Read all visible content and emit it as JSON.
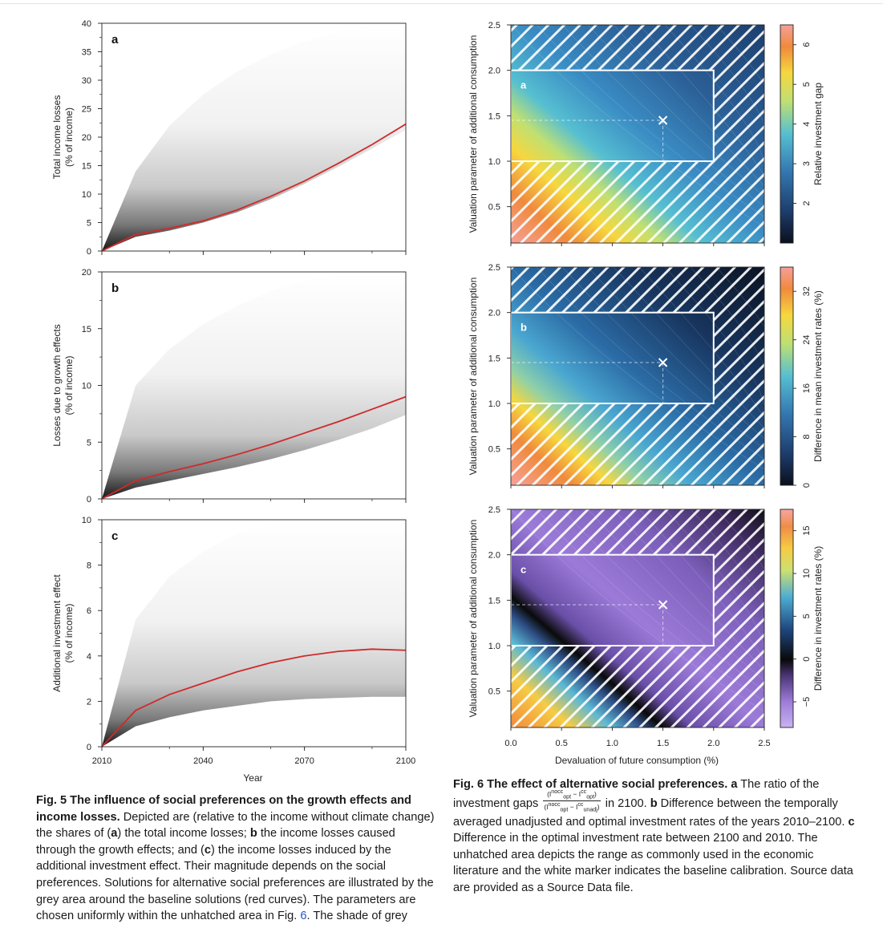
{
  "fig5": {
    "xlabel": "Year",
    "xticks": [
      "2010",
      "2040",
      "2070",
      "2100"
    ],
    "panels": [
      {
        "letter": "a",
        "ylabel1": "Total income losses",
        "ylabel2": "(% of income)",
        "yticks": [
          "0",
          "5",
          "10",
          "15",
          "20",
          "25",
          "30",
          "35",
          "40"
        ]
      },
      {
        "letter": "b",
        "ylabel1": "Losses due to growth effects",
        "ylabel2": "(% of income)",
        "yticks": [
          "0",
          "5",
          "10",
          "15",
          "20"
        ]
      },
      {
        "letter": "c",
        "ylabel1": "Additional investment effect",
        "ylabel2": "(% of income)",
        "yticks": [
          "0",
          "2",
          "4",
          "6",
          "8",
          "10"
        ]
      }
    ],
    "caption": {
      "label": "Fig. 5",
      "title": "The influence of social preferences on the growth effects and income losses.",
      "t1": " Depicted are (relative to the income without climate change) the shares of (",
      "a": "a",
      "t2": ") the total income losses; ",
      "b": "b",
      "t3": " the income losses caused through the growth effects; and (",
      "c": "c",
      "t4": ") the income losses induced by the additional investment effect. Their magnitude depends on the social preferences. Solutions for alternative social preferences are illustrated by the grey area around the baseline solutions (red curves). The parameters are chosen uniformly within the unhatched area in Fig. ",
      "ref": "6",
      "t5": ". The shade of grey"
    }
  },
  "fig6": {
    "xlabel": "Devaluation of future consumption (%)",
    "ylabel": "Valuation parameter of additional consumption",
    "xticks": [
      "0.0",
      "0.5",
      "1.0",
      "1.5",
      "2.0",
      "2.5"
    ],
    "yticks": [
      "0.5",
      "1.0",
      "1.5",
      "2.0",
      "2.5"
    ],
    "panels": [
      {
        "letter": "a",
        "cbar_label": "Relative investment gap",
        "cbar_ticks": [
          "2",
          "3",
          "4",
          "5",
          "6"
        ]
      },
      {
        "letter": "b",
        "cbar_label": "Difference in mean investment rates (%)",
        "cbar_ticks": [
          "0",
          "8",
          "16",
          "24",
          "32"
        ]
      },
      {
        "letter": "c",
        "cbar_label": "Difference in investment rates (%)",
        "cbar_ticks": [
          "−5",
          "0",
          "5",
          "10",
          "15"
        ]
      }
    ],
    "caption": {
      "label": "Fig. 6",
      "title": "The effect of alternative social preferences.",
      "a": "a",
      "t1": " The ratio of the investment gaps ",
      "frac_num": "(I",
      "frac_num_sup1": "nocc",
      "frac_num_sub1": "opt",
      "frac_num_mid": " − I",
      "frac_num_sup2": "cc",
      "frac_num_sub2": "opt",
      "frac_num_end": ")",
      "frac_den": "(I",
      "frac_den_sup1": "nocc",
      "frac_den_sub1": "opt",
      "frac_den_mid": " − I",
      "frac_den_sup2": "cc",
      "frac_den_sub2": "unadj",
      "frac_den_end": ")",
      "t2": " in 2100. ",
      "b": "b",
      "t3": " Difference between the temporally averaged unadjusted and optimal investment rates of the years 2010–2100. ",
      "c": "c",
      "t4": " Difference in the optimal investment rate between 2100 and 2010. The unhatched area depicts the range as commonly used in the economic literature and the white marker indicates the baseline calibration. Source data are provided as a Source Data file."
    }
  },
  "chart_data": [
    {
      "type": "area",
      "title": "a",
      "xlabel": "",
      "ylabel": "Total income losses (% of income)",
      "xlim": [
        2010,
        2100
      ],
      "ylim": [
        0,
        40
      ],
      "series": [
        {
          "x": [
            2010,
            2020,
            2030,
            2040,
            2050,
            2060,
            2070,
            2080,
            2090,
            2100
          ],
          "values": [
            0,
            2.9,
            4.0,
            5.3,
            7.2,
            9.6,
            12.3,
            15.4,
            18.7,
            22.3
          ]
        }
      ],
      "band_upper": [
        0,
        14,
        22,
        27.5,
        31.5,
        34.5,
        36.8,
        38.5,
        39.5,
        40
      ],
      "band_lower": [
        0,
        2.5,
        3.6,
        5.0,
        6.8,
        9.1,
        11.8,
        14.8,
        18.0,
        21.3
      ]
    },
    {
      "type": "area",
      "title": "b",
      "xlabel": "",
      "ylabel": "Losses due to growth effects (% of income)",
      "xlim": [
        2010,
        2100
      ],
      "ylim": [
        0,
        20
      ],
      "series": [
        {
          "x": [
            2010,
            2020,
            2030,
            2040,
            2050,
            2060,
            2070,
            2080,
            2090,
            2100
          ],
          "values": [
            0,
            1.6,
            2.4,
            3.1,
            3.9,
            4.8,
            5.8,
            6.8,
            7.9,
            9.0
          ]
        }
      ],
      "band_upper": [
        0,
        10,
        13.2,
        15.4,
        17.0,
        18.3,
        19.2,
        19.8,
        20,
        20
      ],
      "band_lower": [
        0,
        1.0,
        1.6,
        2.2,
        2.8,
        3.5,
        4.3,
        5.2,
        6.2,
        7.4
      ]
    },
    {
      "type": "area",
      "title": "c",
      "xlabel": "Year",
      "ylabel": "Additional investment effect (% of income)",
      "xlim": [
        2010,
        2100
      ],
      "ylim": [
        0,
        10
      ],
      "series": [
        {
          "x": [
            2010,
            2020,
            2030,
            2040,
            2050,
            2060,
            2070,
            2080,
            2090,
            2100
          ],
          "values": [
            0,
            1.6,
            2.3,
            2.8,
            3.3,
            3.7,
            4.0,
            4.2,
            4.3,
            4.25
          ]
        }
      ],
      "band_upper": [
        0,
        5.6,
        7.5,
        8.6,
        9.4,
        9.8,
        10,
        10,
        10,
        10
      ],
      "band_lower": [
        0,
        0.9,
        1.3,
        1.6,
        1.8,
        2.0,
        2.1,
        2.15,
        2.2,
        2.2
      ]
    },
    {
      "type": "heatmap",
      "title": "a",
      "xlabel": "",
      "ylabel": "Valuation parameter of additional consumption",
      "xlim": [
        0,
        2.5
      ],
      "ylim": [
        0.1,
        2.5
      ],
      "colorbar_range": [
        1,
        6.5
      ],
      "unhatched_box": {
        "x": [
          0,
          2
        ],
        "y": [
          1,
          2
        ]
      },
      "baseline_marker": {
        "x": 1.5,
        "y": 1.45
      }
    },
    {
      "type": "heatmap",
      "title": "b",
      "xlabel": "",
      "ylabel": "Valuation parameter of additional consumption",
      "xlim": [
        0,
        2.5
      ],
      "ylim": [
        0.1,
        2.5
      ],
      "colorbar_range": [
        0,
        36
      ],
      "unhatched_box": {
        "x": [
          0,
          2
        ],
        "y": [
          1,
          2
        ]
      },
      "baseline_marker": {
        "x": 1.5,
        "y": 1.45
      }
    },
    {
      "type": "heatmap",
      "title": "c",
      "xlabel": "Devaluation of future consumption (%)",
      "ylabel": "Valuation parameter of additional consumption",
      "xlim": [
        0,
        2.5
      ],
      "ylim": [
        0.1,
        2.5
      ],
      "colorbar_range": [
        -8,
        17.5
      ],
      "unhatched_box": {
        "x": [
          0,
          2
        ],
        "y": [
          1,
          2
        ]
      },
      "baseline_marker": {
        "x": 1.5,
        "y": 1.45
      }
    }
  ]
}
